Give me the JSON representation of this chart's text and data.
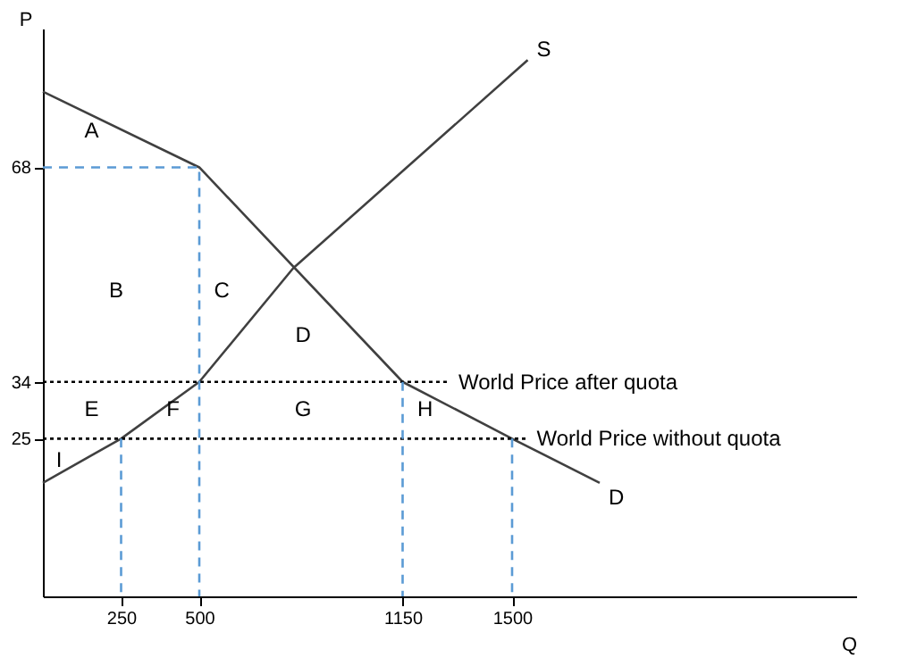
{
  "chart_data": {
    "type": "line",
    "xlabel": "Q",
    "ylabel": "P",
    "xlim": [
      0,
      2600
    ],
    "ylim": [
      0,
      90
    ],
    "xticks": [
      250,
      500,
      1150,
      1500
    ],
    "yticks": [
      25,
      34,
      68
    ],
    "grid": false,
    "marker": "none",
    "series": [
      {
        "name": "S",
        "color": "#404040",
        "line_style": "solid",
        "x": [
          0,
          250,
          500,
          800,
          1550
        ],
        "values": [
          18,
          25,
          34,
          52,
          85
        ]
      },
      {
        "name": "D",
        "color": "#404040",
        "line_style": "solid",
        "x": [
          0,
          500,
          1150,
          1500,
          1780
        ],
        "values": [
          80,
          68,
          34,
          25,
          18
        ]
      },
      {
        "name": "World Price after quota",
        "color": "#000000",
        "line_style": "dotted",
        "x": [
          0,
          1300
        ],
        "values": [
          34,
          34
        ]
      },
      {
        "name": "World Price without quota",
        "color": "#000000",
        "line_style": "dotted",
        "x": [
          0,
          1550
        ],
        "values": [
          25,
          25
        ]
      },
      {
        "color": "#5b9bd5",
        "line_style": "dashed",
        "x": [
          0,
          500,
          500
        ],
        "values": [
          68,
          68,
          0
        ]
      },
      {
        "color": "#5b9bd5",
        "line_style": "dashed",
        "x": [
          250,
          250
        ],
        "values": [
          25,
          0
        ]
      },
      {
        "color": "#5b9bd5",
        "line_style": "dashed",
        "x": [
          1150,
          1150
        ],
        "values": [
          34,
          0
        ]
      },
      {
        "color": "#5b9bd5",
        "line_style": "dashed",
        "x": [
          1500,
          1500
        ],
        "values": [
          25,
          0
        ]
      }
    ],
    "annotations": [
      "A",
      "B",
      "C",
      "D",
      "E",
      "F",
      "G",
      "H",
      "I"
    ]
  }
}
